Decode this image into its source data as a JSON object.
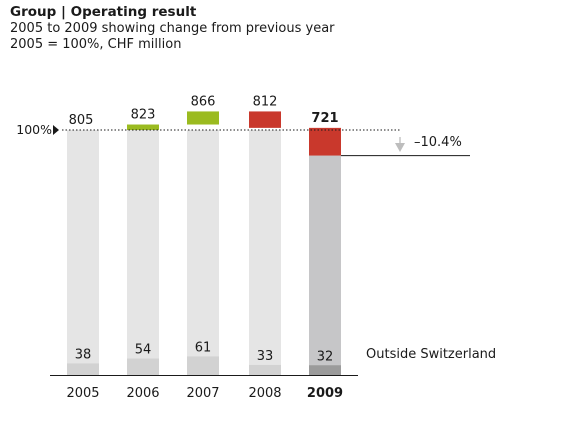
{
  "title": "Group | Operating result",
  "subtitle_lines": [
    "2005 to 2009 showing change from previous year",
    "2005 = 100%, CHF million"
  ],
  "chart_data": {
    "type": "bar",
    "title": "Group | Operating result",
    "categories": [
      "2005",
      "2006",
      "2007",
      "2008",
      "2009"
    ],
    "total_values": [
      805,
      823,
      866,
      812,
      721
    ],
    "total_labels": [
      "805",
      "823",
      "866",
      "812",
      "721"
    ],
    "outside_switzerland_values": [
      38,
      54,
      61,
      33,
      32
    ],
    "outside_switzerland_labels": [
      "38",
      "54",
      "61",
      "33",
      "32"
    ],
    "series_label": "Outside Switzerland",
    "reference_value": 805,
    "reference_label": "100%",
    "change_label": "–10.4%",
    "highlight_category": "2009",
    "ylim": [
      0,
      900
    ],
    "colors": {
      "base_bar": "#e5e5e5",
      "outside_bar": "#d2d2d2",
      "highlight_bar": "#c6c6c8",
      "highlight_outside": "#9b9b9b",
      "increase": "#9bbb20",
      "decrease": "#c9382c",
      "arrow": "#bdbdbd"
    }
  }
}
